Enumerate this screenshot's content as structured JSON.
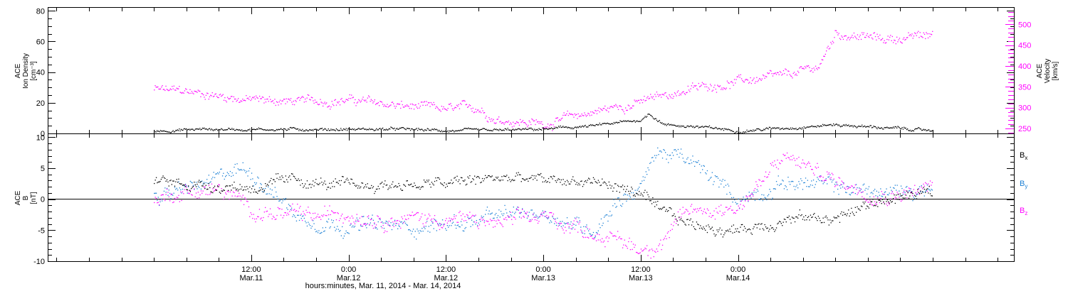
{
  "chart_data": [
    {
      "type": "scatter",
      "panel": "plasma",
      "ylabel_left": [
        "ACE",
        "Ion Density",
        "[cm⁻³]"
      ],
      "ylabel_right": [
        "ACE",
        "Velocity",
        "[km/s]"
      ],
      "ylim_left": [
        0,
        82
      ],
      "yticks_left": [
        "0",
        "20",
        "40",
        "60",
        "80"
      ],
      "ylim_right": [
        238,
        540
      ],
      "yticks_right": [
        "250",
        "300",
        "350",
        "400",
        "450",
        "500"
      ],
      "series": [
        {
          "axis": "left",
          "color": "#000000",
          "x_hours": [
            0,
            6,
            12,
            18,
            24,
            30,
            36,
            42,
            48,
            54,
            60,
            61,
            63,
            66,
            72,
            78,
            84,
            90,
            96
          ],
          "values": [
            2,
            3,
            3,
            3,
            3,
            3,
            2,
            2,
            3,
            5,
            9,
            13,
            6,
            5,
            2,
            4,
            6,
            4,
            2
          ]
        },
        {
          "axis": "right",
          "color": "#ff00ff",
          "x_hours": [
            0,
            6,
            12,
            18,
            24,
            30,
            36,
            40,
            42,
            48,
            54,
            60,
            66,
            72,
            78,
            82,
            84,
            90,
            96
          ],
          "values": [
            345,
            335,
            320,
            315,
            320,
            305,
            295,
            300,
            275,
            262,
            290,
            315,
            345,
            365,
            375,
            400,
            480,
            465,
            475
          ]
        }
      ]
    },
    {
      "type": "scatter",
      "panel": "magnetic-field",
      "ylabel_left": [
        "ACE",
        "B",
        "[nT]"
      ],
      "ylim": [
        -10,
        10.5
      ],
      "yticks": [
        "-10",
        "-5",
        "0",
        "5",
        "10"
      ],
      "legend": [
        "Bx",
        "By",
        "Bz"
      ],
      "series": [
        {
          "name": "Bx",
          "color": "#000000",
          "x_hours": [
            0,
            6,
            12,
            18,
            24,
            30,
            36,
            42,
            48,
            54,
            60,
            62,
            66,
            72,
            78,
            84,
            90,
            96
          ],
          "values": [
            3,
            2.5,
            2,
            3,
            2,
            2.5,
            2.5,
            3.5,
            3,
            3,
            1,
            -2,
            -4,
            -5,
            -3,
            -3,
            0,
            1
          ]
        },
        {
          "name": "By",
          "color": "#1a7fd4",
          "x_hours": [
            0,
            4,
            8,
            10,
            12,
            15,
            18,
            24,
            30,
            36,
            42,
            48,
            54,
            57,
            60,
            62,
            66,
            72,
            78,
            84,
            90,
            96
          ],
          "values": [
            0.5,
            1.5,
            3,
            5,
            4.5,
            1,
            -3,
            -4,
            -4.5,
            -4,
            -3,
            -2,
            -5,
            0,
            2,
            8,
            6,
            0,
            3,
            2,
            1,
            2
          ]
        },
        {
          "name": "Bz",
          "color": "#ff00ff",
          "x_hours": [
            0,
            4,
            8,
            12,
            16,
            20,
            24,
            30,
            36,
            42,
            48,
            54,
            58,
            60,
            62,
            66,
            72,
            78,
            81,
            84,
            90,
            96
          ],
          "values": [
            0,
            1.5,
            1.5,
            -1.5,
            -2.5,
            -3,
            -2,
            -3,
            -3,
            -4,
            -3,
            -5,
            -7,
            -8,
            -7,
            -2,
            -1,
            7,
            5,
            3,
            1,
            2
          ]
        }
      ]
    }
  ],
  "x_axis": {
    "title": "hours:minutes, Mar. 11, 2014 - Mar. 14, 2014",
    "major_ticks": [
      {
        "hour": 12,
        "time": "12:00",
        "date": "Mar.11"
      },
      {
        "hour": 24,
        "time": "0:00",
        "date": "Mar.12"
      },
      {
        "hour": 36,
        "time": "12:00",
        "date": "Mar.12"
      },
      {
        "hour": 48,
        "time": "0:00",
        "date": "Mar.13"
      },
      {
        "hour": 60,
        "time": "12:00",
        "date": "Mar.13"
      },
      {
        "hour": 72,
        "time": "0:00",
        "date": "Mar.14"
      }
    ]
  },
  "legend": {
    "bx": {
      "base": "B",
      "sub": "x"
    },
    "by": {
      "base": "B",
      "sub": "y"
    },
    "bz": {
      "base": "B",
      "sub": "z"
    }
  },
  "colors": {
    "density": "#000000",
    "velocity": "#ff00ff",
    "bx": "#000000",
    "by": "#1a7fd4",
    "bz": "#ff00ff"
  }
}
